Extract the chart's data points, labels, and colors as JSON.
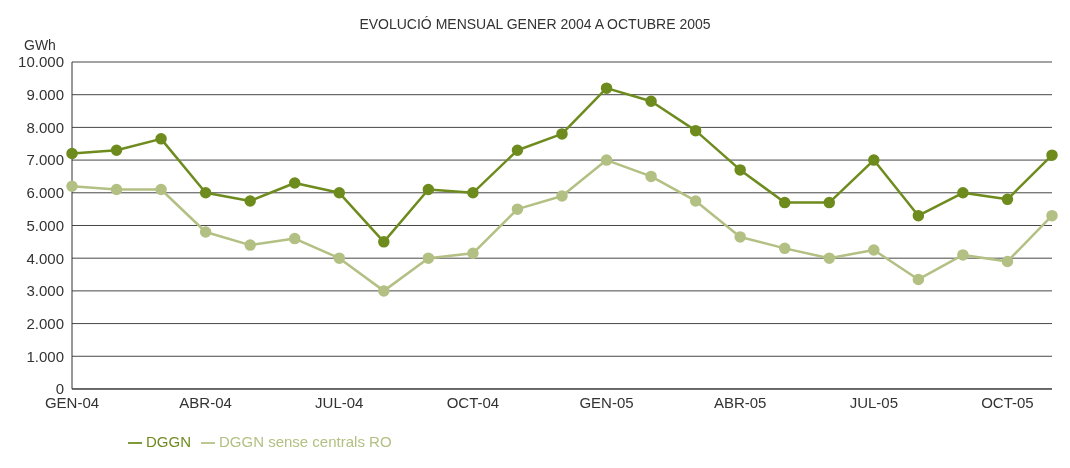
{
  "chart_data": {
    "type": "line",
    "title": "EVOLUCIÓ MENSUAL GENER 2004 A OCTUBRE 2005",
    "ylabel": "GWh",
    "categories": [
      "GEN-04",
      null,
      null,
      "ABR-04",
      null,
      null,
      "JUL-04",
      null,
      null,
      "OCT-04",
      null,
      null,
      "GEN-05",
      null,
      null,
      "ABR-05",
      null,
      null,
      "JUL-05",
      null,
      null,
      "OCT-05",
      null
    ],
    "series": [
      {
        "name": "DGGN",
        "color": "#6e8b1e",
        "values": [
          7200,
          7300,
          7650,
          6000,
          5750,
          6300,
          6000,
          4500,
          6100,
          6000,
          7300,
          7800,
          9200,
          8800,
          7900,
          6700,
          5700,
          5700,
          7000,
          5300,
          6000,
          5800,
          7150
        ]
      },
      {
        "name": "DGGN sense centrals RO",
        "color": "#b2c083",
        "values": [
          6200,
          6100,
          6100,
          4800,
          4400,
          4600,
          4000,
          3000,
          4000,
          4150,
          5500,
          5900,
          7000,
          6500,
          5750,
          4650,
          4300,
          4000,
          4250,
          3350,
          4100,
          3900,
          5300
        ]
      }
    ],
    "ylim": [
      0,
      10000
    ],
    "yticks": [
      {
        "value": 0,
        "label": "0"
      },
      {
        "value": 1000,
        "label": "1.000"
      },
      {
        "value": 2000,
        "label": "2.000"
      },
      {
        "value": 3000,
        "label": "3.000"
      },
      {
        "value": 4000,
        "label": "4.000"
      },
      {
        "value": 5000,
        "label": "5.000"
      },
      {
        "value": 6000,
        "label": "6.000"
      },
      {
        "value": 7000,
        "label": "7.000"
      },
      {
        "value": 8000,
        "label": "8.000"
      },
      {
        "value": 9000,
        "label": "9.000"
      },
      {
        "value": 10000,
        "label": "10.000"
      }
    ],
    "grid": "y",
    "legend": "bottom left",
    "marker": "circle",
    "line_style": "solid"
  }
}
